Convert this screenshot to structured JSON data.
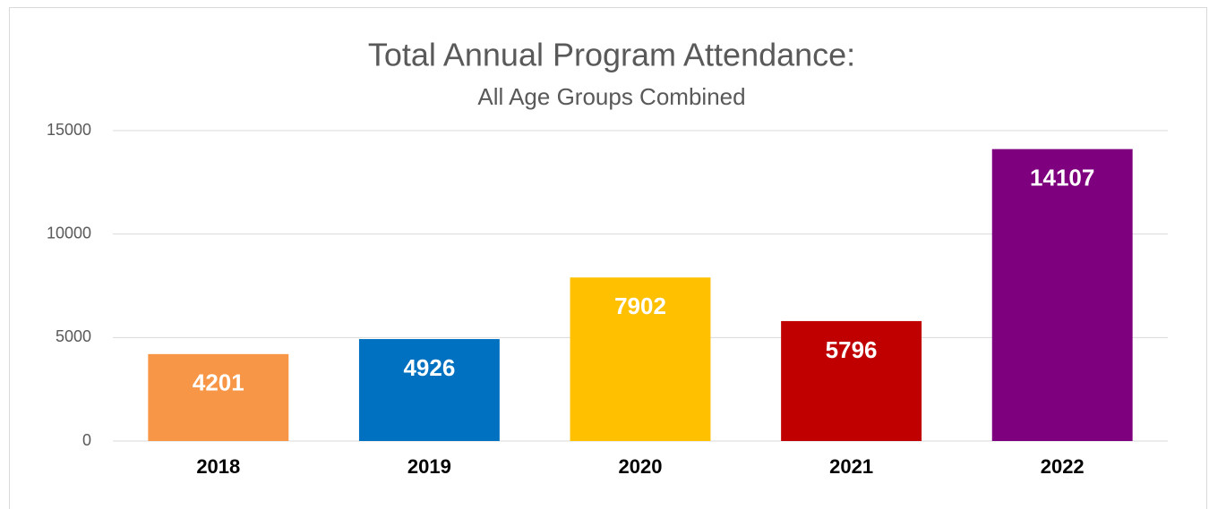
{
  "chart_data": {
    "type": "bar",
    "title": "Total Annual Program Attendance:",
    "subtitle": "All Age Groups Combined",
    "categories": [
      "2018",
      "2019",
      "2020",
      "2021",
      "2022"
    ],
    "values": [
      4201,
      4926,
      7902,
      5796,
      14107
    ],
    "colors": [
      "#f79646",
      "#0070c0",
      "#ffc000",
      "#c00000",
      "#7f007f"
    ],
    "ylim": [
      0,
      15000
    ],
    "yticks": [
      0,
      5000,
      10000,
      15000
    ],
    "grid": true
  }
}
